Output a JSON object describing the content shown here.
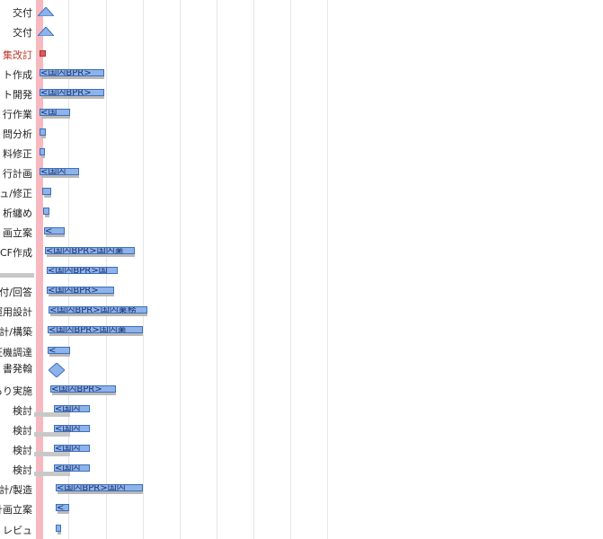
{
  "colors": {
    "bar_fill": "#8db3ec",
    "bar_border": "#3d6fb8",
    "today_line": "#f7b9bf",
    "shadow": "#b9b9b9",
    "red_text": "#c0392b"
  },
  "rows": [
    {
      "label": "交付",
      "type": "milestone"
    },
    {
      "label": "交付",
      "type": "milestone"
    },
    {
      "label": "集改訂",
      "type": "red",
      "red": true
    },
    {
      "label": "ト作成",
      "type": "bar",
      "bar": "<国内BPR>"
    },
    {
      "label": "ト開発",
      "type": "bar",
      "bar": "<国内BPR>"
    },
    {
      "label": "行作業",
      "type": "bar",
      "bar": "<国"
    },
    {
      "label": "問分析",
      "type": "small"
    },
    {
      "label": "料修正",
      "type": "small"
    },
    {
      "label": "行計画",
      "type": "bar",
      "bar": "<国内"
    },
    {
      "label": "ュ/修正",
      "type": "small"
    },
    {
      "label": "析纏め",
      "type": "small"
    },
    {
      "label": "画立案",
      "type": "bar",
      "bar": "<"
    },
    {
      "label": "CF作成",
      "type": "bar",
      "bar": "<国内BPR>国内業"
    },
    {
      "label": "",
      "type": "bar",
      "bar": "<国内BPR>国"
    },
    {
      "label": "付/回答",
      "type": "bar",
      "bar": "<国内BPR>"
    },
    {
      "label": "運用設計",
      "type": "bar",
      "bar": "<国内BPR>国内業務"
    },
    {
      "label": "計/構築",
      "type": "bar",
      "bar": "<国内BPR>国内業"
    },
    {
      "label": "証機調達",
      "type": "bar",
      "bar": "<"
    },
    {
      "label": "書発翰",
      "type": "milestone"
    },
    {
      "label": "もり実施",
      "type": "bar",
      "bar": "<国内BPR>"
    },
    {
      "label": "検討",
      "type": "bar",
      "bar": "<国内"
    },
    {
      "label": "検討",
      "type": "bar",
      "bar": "<国内"
    },
    {
      "label": "検討",
      "type": "bar",
      "bar": "<国内"
    },
    {
      "label": "検討",
      "type": "bar",
      "bar": "<国内"
    },
    {
      "label": "設計/製造",
      "type": "bar",
      "bar": "<国内BPR>国内"
    },
    {
      "label": "計画立案",
      "type": "bar",
      "bar": "<"
    },
    {
      "label": "ツ レビュ",
      "type": "small"
    }
  ]
}
